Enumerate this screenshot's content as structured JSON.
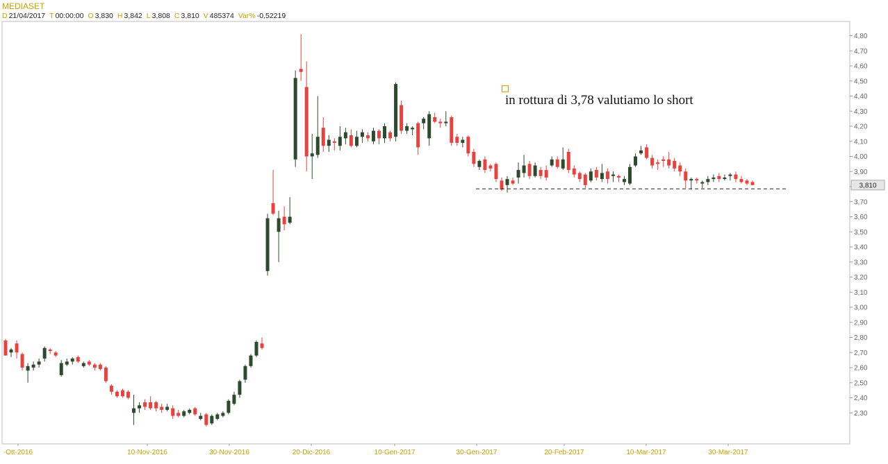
{
  "header": {
    "symbol": "MEDIASET",
    "fields": [
      {
        "key": "D",
        "value": "21/04/2017"
      },
      {
        "key": "T",
        "value": "00:00:00"
      },
      {
        "key": "O",
        "value": "3,830"
      },
      {
        "key": "H",
        "value": "3,842"
      },
      {
        "key": "L",
        "value": "3,808"
      },
      {
        "key": "C",
        "value": "3,810"
      },
      {
        "key": "V",
        "value": "485374"
      },
      {
        "key": "Var%",
        "value": "-0,52219"
      }
    ]
  },
  "colors": {
    "up": "#2d4a2d",
    "down": "#e8413e",
    "grid": "#d0d0d0",
    "axis_text": "#666666",
    "date_text": "#c8a000",
    "annotation_box": "#d4a017"
  },
  "chart_data": {
    "type": "candlestick",
    "title": "MEDIASET",
    "x_tick_labels": [
      "-Ott-2016",
      "10-Nov-2016",
      "30-Nov-2016",
      "20-Dic-2016",
      "10-Gen-2017",
      "30-Gen-2017",
      "20-Feb-2017",
      "10-Mar-2017",
      "30-Mar-2017"
    ],
    "y_tick_labels": [
      "4,80",
      "4,70",
      "4,60",
      "4,50",
      "4,40",
      "4,30",
      "4,20",
      "4,10",
      "4,00",
      "3,90",
      "3,80",
      "3,70",
      "3,60",
      "3,50",
      "3,40",
      "3,30",
      "3,20",
      "3,10",
      "3,00",
      "2,90",
      "2,80",
      "2,70",
      "2,60",
      "2,50",
      "2,40",
      "2,30"
    ],
    "ylim": [
      2.15,
      4.86
    ],
    "current_price": 3.81,
    "current_price_label": "3,810",
    "annotation": "in rottura di 3,78 valutiamo lo short",
    "support_level": 3.785,
    "candles": [
      [
        2.78,
        2.68,
        2.79,
        2.68
      ],
      [
        2.7,
        2.72,
        2.73,
        2.67
      ],
      [
        2.76,
        2.7,
        2.78,
        2.66
      ],
      [
        2.69,
        2.6,
        2.7,
        2.58
      ],
      [
        2.58,
        2.61,
        2.63,
        2.5
      ],
      [
        2.6,
        2.62,
        2.64,
        2.58
      ],
      [
        2.62,
        2.64,
        2.66,
        2.6
      ],
      [
        2.66,
        2.73,
        2.74,
        2.64
      ],
      [
        2.72,
        2.71,
        2.73,
        2.69
      ],
      [
        2.7,
        2.68,
        2.71,
        2.67
      ],
      [
        2.55,
        2.63,
        2.65,
        2.54
      ],
      [
        2.62,
        2.64,
        2.66,
        2.61
      ],
      [
        2.64,
        2.66,
        2.67,
        2.62
      ],
      [
        2.67,
        2.64,
        2.68,
        2.63
      ],
      [
        2.61,
        2.63,
        2.64,
        2.6
      ],
      [
        2.64,
        2.62,
        2.65,
        2.61
      ],
      [
        2.62,
        2.6,
        2.63,
        2.58
      ],
      [
        2.62,
        2.59,
        2.63,
        2.58
      ],
      [
        2.6,
        2.51,
        2.61,
        2.5
      ],
      [
        2.48,
        2.44,
        2.49,
        2.42
      ],
      [
        2.44,
        2.41,
        2.45,
        2.4
      ],
      [
        2.45,
        2.41,
        2.46,
        2.4
      ],
      [
        2.44,
        2.4,
        2.45,
        2.39
      ],
      [
        2.3,
        2.33,
        2.42,
        2.22
      ],
      [
        2.33,
        2.35,
        2.37,
        2.3
      ],
      [
        2.37,
        2.34,
        2.39,
        2.32
      ],
      [
        2.37,
        2.33,
        2.41,
        2.32
      ],
      [
        2.37,
        2.33,
        2.38,
        2.31
      ],
      [
        2.34,
        2.32,
        2.36,
        2.3
      ],
      [
        2.32,
        2.34,
        2.36,
        2.31
      ],
      [
        2.33,
        2.28,
        2.35,
        2.26
      ],
      [
        2.3,
        2.28,
        2.32,
        2.27
      ],
      [
        2.28,
        2.31,
        2.32,
        2.27
      ],
      [
        2.3,
        2.32,
        2.33,
        2.29
      ],
      [
        2.33,
        2.29,
        2.34,
        2.28
      ],
      [
        2.26,
        2.28,
        2.3,
        2.25
      ],
      [
        2.29,
        2.22,
        2.3,
        2.21
      ],
      [
        2.23,
        2.28,
        2.29,
        2.22
      ],
      [
        2.26,
        2.29,
        2.3,
        2.25
      ],
      [
        2.28,
        2.3,
        2.31,
        2.27
      ],
      [
        2.3,
        2.38,
        2.39,
        2.29
      ],
      [
        2.36,
        2.42,
        2.44,
        2.35
      ],
      [
        2.42,
        2.51,
        2.52,
        2.4
      ],
      [
        2.52,
        2.61,
        2.62,
        2.5
      ],
      [
        2.61,
        2.68,
        2.69,
        2.6
      ],
      [
        2.68,
        2.77,
        2.78,
        2.67
      ],
      [
        2.76,
        2.73,
        2.8,
        2.72
      ],
      [
        3.24,
        3.59,
        3.62,
        3.21
      ],
      [
        3.69,
        3.62,
        3.91,
        3.61
      ],
      [
        3.5,
        3.59,
        3.64,
        3.3
      ],
      [
        3.6,
        3.55,
        3.67,
        3.51
      ],
      [
        3.56,
        3.6,
        3.73,
        3.55
      ],
      [
        3.98,
        4.52,
        4.57,
        3.93
      ],
      [
        4.58,
        4.56,
        4.81,
        4.5
      ],
      [
        4.46,
        4.0,
        4.63,
        3.9
      ],
      [
        4.0,
        4.02,
        4.15,
        3.85
      ],
      [
        4.01,
        4.13,
        4.4,
        3.99
      ],
      [
        4.19,
        4.07,
        4.26,
        4.03
      ],
      [
        4.07,
        4.11,
        4.14,
        4.03
      ],
      [
        4.1,
        4.09,
        4.12,
        4.04
      ],
      [
        4.07,
        4.13,
        4.2,
        4.04
      ],
      [
        4.12,
        4.16,
        4.19,
        4.08
      ],
      [
        4.14,
        4.07,
        4.18,
        4.06
      ],
      [
        4.07,
        4.13,
        4.17,
        4.06
      ],
      [
        4.13,
        4.16,
        4.18,
        4.09
      ],
      [
        4.14,
        4.12,
        4.16,
        4.1
      ],
      [
        4.1,
        4.17,
        4.19,
        4.08
      ],
      [
        4.17,
        4.12,
        4.18,
        4.08
      ],
      [
        4.12,
        4.2,
        4.22,
        4.09
      ],
      [
        4.16,
        4.12,
        4.17,
        4.1
      ],
      [
        4.13,
        4.48,
        4.49,
        4.1
      ],
      [
        4.34,
        4.17,
        4.37,
        4.15
      ],
      [
        4.17,
        4.2,
        4.22,
        4.15
      ],
      [
        4.18,
        4.19,
        4.2,
        4.14
      ],
      [
        4.22,
        4.06,
        4.23,
        4.01
      ],
      [
        4.22,
        4.25,
        4.26,
        4.18
      ],
      [
        4.12,
        4.28,
        4.3,
        4.07
      ],
      [
        4.26,
        4.23,
        4.29,
        4.22
      ],
      [
        4.23,
        4.22,
        4.25,
        4.19
      ],
      [
        4.22,
        4.23,
        4.3,
        4.2
      ],
      [
        4.26,
        4.09,
        4.27,
        4.07
      ],
      [
        4.13,
        4.09,
        4.15,
        4.07
      ],
      [
        4.09,
        4.11,
        4.13,
        4.06
      ],
      [
        4.13,
        4.02,
        4.14,
        4.0
      ],
      [
        4.03,
        3.95,
        4.05,
        3.93
      ],
      [
        3.93,
        3.97,
        3.98,
        3.91
      ],
      [
        3.98,
        3.91,
        4.0,
        3.89
      ],
      [
        3.94,
        3.92,
        3.95,
        3.9
      ],
      [
        3.95,
        3.85,
        3.96,
        3.83
      ],
      [
        3.84,
        3.78,
        3.86,
        3.77
      ],
      [
        3.81,
        3.85,
        3.87,
        3.76
      ],
      [
        3.84,
        3.82,
        3.86,
        3.81
      ],
      [
        3.86,
        3.91,
        3.96,
        3.82
      ],
      [
        3.89,
        3.94,
        4.01,
        3.86
      ],
      [
        3.95,
        3.87,
        3.97,
        3.85
      ],
      [
        3.87,
        3.94,
        3.96,
        3.86
      ],
      [
        3.91,
        3.87,
        3.93,
        3.85
      ],
      [
        3.91,
        3.86,
        3.94,
        3.84
      ],
      [
        3.94,
        3.98,
        4.0,
        3.93
      ],
      [
        3.98,
        3.93,
        4.0,
        3.92
      ],
      [
        3.92,
        3.98,
        4.06,
        3.91
      ],
      [
        4.03,
        3.91,
        4.05,
        3.89
      ],
      [
        3.92,
        3.88,
        3.94,
        3.86
      ],
      [
        3.89,
        3.85,
        3.9,
        3.83
      ],
      [
        3.88,
        3.81,
        3.89,
        3.79
      ],
      [
        3.84,
        3.9,
        3.92,
        3.83
      ],
      [
        3.91,
        3.86,
        3.93,
        3.84
      ],
      [
        3.85,
        3.89,
        3.95,
        3.83
      ],
      [
        3.9,
        3.85,
        3.92,
        3.82
      ],
      [
        3.87,
        3.88,
        3.9,
        3.83
      ],
      [
        3.87,
        3.86,
        3.88,
        3.83
      ],
      [
        3.83,
        3.85,
        3.87,
        3.81
      ],
      [
        3.82,
        3.93,
        3.95,
        3.81
      ],
      [
        3.94,
        4.0,
        4.02,
        3.93
      ],
      [
        4.02,
        4.04,
        4.07,
        4.01
      ],
      [
        4.06,
        3.99,
        4.08,
        3.98
      ],
      [
        3.99,
        3.94,
        4.01,
        3.92
      ],
      [
        3.96,
        3.95,
        3.98,
        3.91
      ],
      [
        3.98,
        3.97,
        4.0,
        3.93
      ],
      [
        3.98,
        3.94,
        4.03,
        3.92
      ],
      [
        3.97,
        3.92,
        3.99,
        3.9
      ],
      [
        3.94,
        3.9,
        3.96,
        3.87
      ],
      [
        3.9,
        3.84,
        3.92,
        3.79
      ],
      [
        3.84,
        3.85,
        3.86,
        3.78
      ],
      [
        3.85,
        3.84,
        3.86,
        3.82
      ],
      [
        3.82,
        3.83,
        3.84,
        3.79
      ],
      [
        3.83,
        3.85,
        3.87,
        3.81
      ],
      [
        3.85,
        3.86,
        3.88,
        3.83
      ],
      [
        3.87,
        3.85,
        3.89,
        3.83
      ],
      [
        3.85,
        3.86,
        3.88,
        3.84
      ],
      [
        3.87,
        3.88,
        3.89,
        3.84
      ],
      [
        3.88,
        3.85,
        3.9,
        3.83
      ],
      [
        3.85,
        3.83,
        3.87,
        3.82
      ],
      [
        3.84,
        3.82,
        3.85,
        3.81
      ],
      [
        3.83,
        3.81,
        3.84,
        3.808
      ]
    ]
  }
}
